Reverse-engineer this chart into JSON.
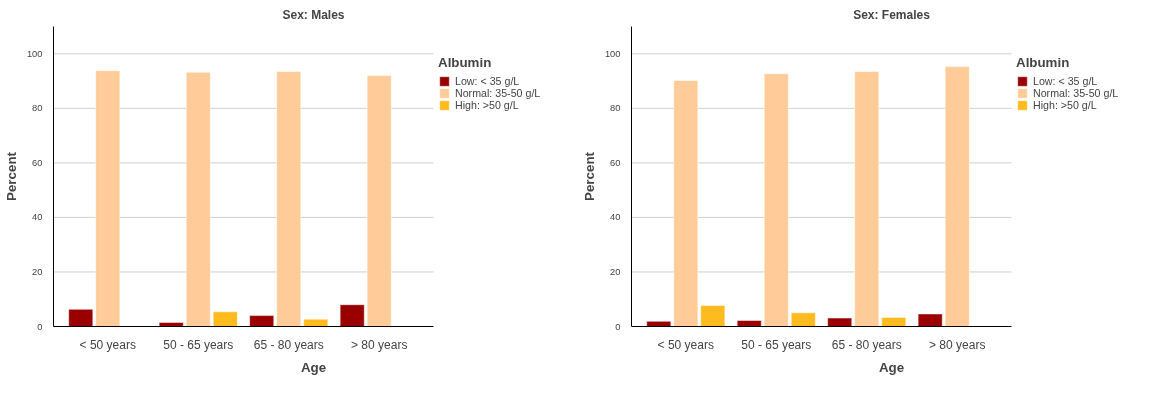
{
  "chart_data": [
    {
      "type": "bar",
      "title": "Sex: Males",
      "xlabel": "Age",
      "ylabel": "Percent",
      "legend_title": "Albumin",
      "categories": [
        "< 50 years",
        "50 - 65 years",
        "65 - 80 years",
        "> 80 years"
      ],
      "series": [
        {
          "name": "Low: < 35 g/L",
          "color": "#990000",
          "values": [
            6.3,
            1.5,
            4.0,
            8.0
          ]
        },
        {
          "name": "Normal: 35-50 g/L",
          "color": "#ffcc99",
          "values": [
            93.8,
            93.2,
            93.5,
            92.0
          ]
        },
        {
          "name": "High: >50 g/L",
          "color": "#fdbb1f",
          "values": [
            null,
            5.4,
            2.7,
            null
          ]
        }
      ],
      "ylim": [
        0,
        110
      ],
      "yticks": [
        0,
        20,
        40,
        60,
        80,
        100
      ],
      "grid": "y",
      "legend": "right"
    },
    {
      "type": "bar",
      "title": "Sex: Females",
      "xlabel": "Age",
      "ylabel": "Percent",
      "legend_title": "Albumin",
      "categories": [
        "< 50 years",
        "50 - 65 years",
        "65 - 80 years",
        "> 80 years"
      ],
      "series": [
        {
          "name": "Low: < 35 g/L",
          "color": "#990000",
          "values": [
            1.9,
            2.2,
            3.1,
            4.6
          ]
        },
        {
          "name": "Normal: 35-50 g/L",
          "color": "#ffcc99",
          "values": [
            90.2,
            92.7,
            93.5,
            95.3
          ]
        },
        {
          "name": "High: >50 g/L",
          "color": "#fdbb1f",
          "values": [
            7.7,
            5.0,
            3.3,
            null
          ]
        }
      ],
      "ylim": [
        0,
        110
      ],
      "yticks": [
        0,
        20,
        40,
        60,
        80,
        100
      ],
      "grid": "y",
      "legend": "right"
    }
  ]
}
